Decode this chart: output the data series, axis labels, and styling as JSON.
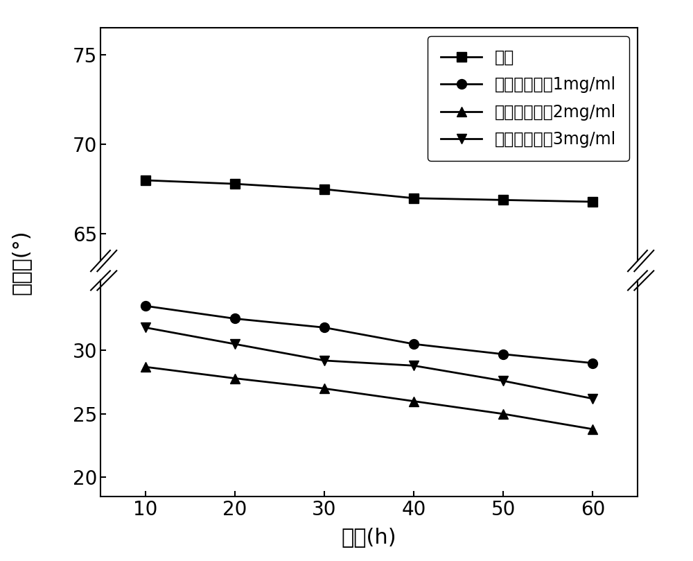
{
  "x": [
    10,
    20,
    30,
    40,
    50,
    60
  ],
  "series": [
    {
      "label": "原煤",
      "y": [
        68.0,
        67.8,
        67.5,
        67.0,
        66.9,
        66.8
      ],
      "marker": "s",
      "color": "#000000"
    },
    {
      "label": "多巴胺浓度为1mg/ml",
      "y": [
        33.5,
        32.5,
        31.8,
        30.5,
        29.7,
        29.0
      ],
      "marker": "o",
      "color": "#000000"
    },
    {
      "label": "多巴胺浓度为2mg/ml",
      "y": [
        28.7,
        27.8,
        27.0,
        26.0,
        25.0,
        23.8
      ],
      "marker": "^",
      "color": "#000000"
    },
    {
      "label": "多巴胺浓度为3mg/ml",
      "y": [
        31.8,
        30.5,
        29.2,
        28.8,
        27.6,
        26.2
      ],
      "marker": "v",
      "color": "#000000"
    }
  ],
  "xlabel": "时间(h)",
  "ylabel": "接触角(°)",
  "yticks_lower": [
    20,
    25,
    30
  ],
  "yticks_upper": [
    65,
    70,
    75
  ],
  "ylim_lower": [
    18.5,
    35.5
  ],
  "ylim_upper": [
    63.5,
    76.5
  ],
  "xticks": [
    10,
    20,
    30,
    40,
    50,
    60
  ],
  "xlabel_fontsize": 22,
  "ylabel_fontsize": 22,
  "tick_fontsize": 20,
  "legend_fontsize": 17,
  "markersize": 10,
  "linewidth": 2.0,
  "background_color": "#ffffff"
}
